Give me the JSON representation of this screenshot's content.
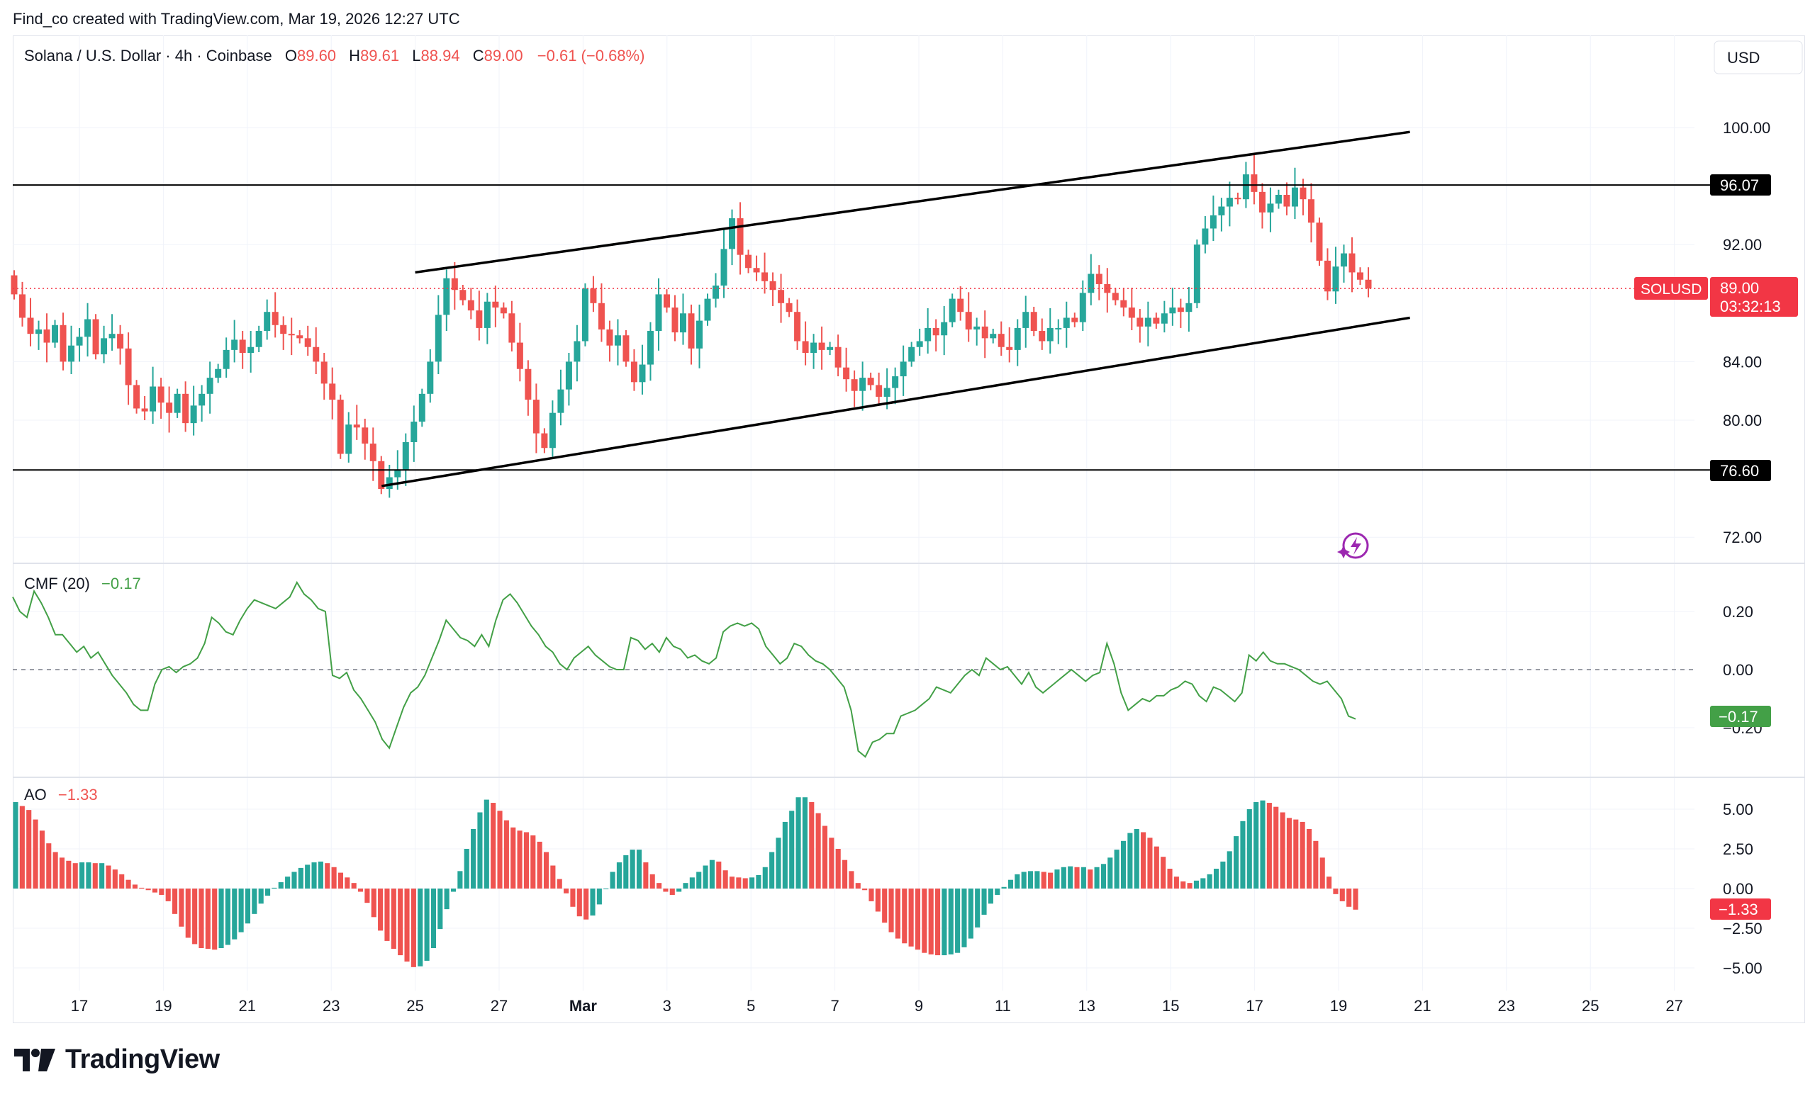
{
  "header": {
    "created_by": "Find_co created with TradingView.com, Mar 19, 2026 12:27 UTC"
  },
  "footer": {
    "brand": "TradingView"
  },
  "colors": {
    "up": "#26a69a",
    "down": "#ef5350",
    "cmf_line": "#43a047",
    "grid": "#f0f3fa",
    "text": "#131722"
  },
  "chart_data": [
    {
      "type": "candlestick",
      "title": "Solana / U.S. Dollar · 4h · Coinbase",
      "ohlc_labels": {
        "o": "O",
        "h": "H",
        "l": "L",
        "c": "C"
      },
      "ohlc": {
        "open": "89.60",
        "high": "89.61",
        "low": "88.94",
        "close": "89.00",
        "change": "−0.61 (−0.68%)"
      },
      "currency": "USD",
      "symbol": "SOLUSD",
      "last_price": "89.00",
      "countdown": "03:32:13",
      "y_ticks": [
        "100.00",
        "92.00",
        "84.00",
        "80.00",
        "72.00"
      ],
      "ylim": [
        69.5,
        103.5
      ],
      "x_ticks": [
        {
          "label": "17",
          "day": 17
        },
        {
          "label": "19",
          "day": 19
        },
        {
          "label": "21",
          "day": 21
        },
        {
          "label": "23",
          "day": 23
        },
        {
          "label": "25",
          "day": 25
        },
        {
          "label": "27",
          "day": 27
        },
        {
          "label": "Mar",
          "day": 29
        },
        {
          "label": "3",
          "day": 31
        },
        {
          "label": "5",
          "day": 33
        },
        {
          "label": "7",
          "day": 35
        },
        {
          "label": "9",
          "day": 37
        },
        {
          "label": "11",
          "day": 39
        },
        {
          "label": "13",
          "day": 41
        },
        {
          "label": "15",
          "day": 43
        },
        {
          "label": "17",
          "day": 45
        },
        {
          "label": "19",
          "day": 47
        },
        {
          "label": "21",
          "day": 49
        },
        {
          "label": "23",
          "day": 51
        },
        {
          "label": "25",
          "day": 53
        },
        {
          "label": "27",
          "day": 55
        }
      ],
      "horizontal_levels": [
        {
          "price": 96.07,
          "label": "96.07"
        },
        {
          "price": 76.6,
          "label": "76.60"
        }
      ],
      "channel": {
        "upper": {
          "from": {
            "day": 25.0,
            "price": 90.1
          },
          "to": {
            "day": 48.7,
            "price": 99.7
          }
        },
        "lower": {
          "from": {
            "day": 24.2,
            "price": 75.5
          },
          "to": {
            "day": 48.7,
            "price": 87.0
          }
        }
      },
      "closes": [
        88.6,
        87.0,
        85.9,
        86.2,
        85.3,
        86.5,
        84.0,
        85.1,
        85.7,
        86.9,
        84.5,
        85.6,
        85.9,
        84.9,
        82.4,
        80.8,
        80.6,
        82.3,
        81.2,
        80.5,
        81.8,
        79.8,
        81.0,
        81.8,
        82.9,
        83.5,
        84.8,
        85.5,
        84.6,
        85.0,
        86.1,
        87.4,
        86.5,
        85.9,
        85.8,
        85.6,
        85.0,
        84.0,
        82.5,
        81.4,
        77.7,
        79.7,
        79.5,
        78.4,
        77.2,
        75.3,
        76.1,
        76.6,
        78.5,
        79.9,
        81.8,
        84.0,
        87.2,
        89.7,
        88.9,
        88.2,
        87.5,
        86.3,
        88.1,
        87.7,
        87.3,
        85.3,
        83.5,
        81.4,
        79.1,
        78.1,
        80.5,
        82.1,
        84.0,
        85.4,
        89.0,
        88.0,
        86.2,
        85.1,
        85.8,
        84.0,
        82.6,
        83.8,
        86.1,
        88.6,
        87.7,
        86.0,
        87.3,
        84.9,
        86.8,
        88.3,
        89.2,
        91.7,
        93.8,
        91.3,
        90.4,
        90.1,
        89.5,
        88.9,
        88.0,
        87.4,
        85.4,
        84.6,
        85.3,
        84.8,
        85.0,
        83.6,
        82.8,
        82.0,
        82.9,
        82.4,
        81.6,
        82.2,
        83.0,
        84.0,
        85.0,
        85.4,
        86.3,
        85.8,
        86.7,
        88.3,
        87.4,
        86.2,
        86.4,
        85.6,
        85.9,
        85.0,
        84.8,
        86.3,
        87.4,
        86.1,
        85.4,
        86.3,
        86.3,
        87.0,
        86.7,
        88.7,
        90.0,
        89.3,
        88.7,
        88.2,
        87.7,
        87.0,
        86.4,
        87.0,
        86.6,
        87.3,
        87.7,
        87.4,
        88.0,
        92.0,
        93.1,
        94.0,
        94.6,
        95.2,
        95.1,
        96.8,
        95.6,
        94.2,
        94.8,
        95.4,
        94.6,
        95.9,
        95.1,
        93.5,
        90.9,
        88.8,
        90.5,
        91.4,
        90.1,
        89.6,
        89.0
      ],
      "opens": [
        89.9,
        88.6,
        87.0,
        85.9,
        86.2,
        85.3,
        86.5,
        84.0,
        85.1,
        85.7,
        86.9,
        84.5,
        85.6,
        85.9,
        84.9,
        82.4,
        80.8,
        80.6,
        82.3,
        81.2,
        80.5,
        81.8,
        79.8,
        81.0,
        81.8,
        82.9,
        83.5,
        84.8,
        85.5,
        84.6,
        85.0,
        86.1,
        87.4,
        86.5,
        85.9,
        85.8,
        85.6,
        85.0,
        84.0,
        82.5,
        81.4,
        77.7,
        79.7,
        79.5,
        78.4,
        77.2,
        75.3,
        76.1,
        76.6,
        78.5,
        79.9,
        81.8,
        84.0,
        87.2,
        89.7,
        88.9,
        88.2,
        87.5,
        86.3,
        88.1,
        87.7,
        87.3,
        85.3,
        83.5,
        81.4,
        79.1,
        78.1,
        80.5,
        82.1,
        84.0,
        85.4,
        89.0,
        88.0,
        86.2,
        85.1,
        85.8,
        84.0,
        82.6,
        83.8,
        86.1,
        88.6,
        87.7,
        86.0,
        87.3,
        84.9,
        86.8,
        88.3,
        89.2,
        91.7,
        93.8,
        91.3,
        90.4,
        90.1,
        89.5,
        88.9,
        88.0,
        87.4,
        85.4,
        84.6,
        85.3,
        84.8,
        85.0,
        83.6,
        82.8,
        82.0,
        82.9,
        82.4,
        81.6,
        82.2,
        83.0,
        84.0,
        85.0,
        85.4,
        86.3,
        85.8,
        86.7,
        88.3,
        87.4,
        86.2,
        86.4,
        85.6,
        85.9,
        85.0,
        84.8,
        86.3,
        87.4,
        86.1,
        85.4,
        86.3,
        86.3,
        87.0,
        86.7,
        88.7,
        90.0,
        89.3,
        88.7,
        88.2,
        87.7,
        87.0,
        86.4,
        87.0,
        86.6,
        87.3,
        87.7,
        87.4,
        88.0,
        92.0,
        93.1,
        94.0,
        94.6,
        95.2,
        95.1,
        96.8,
        95.6,
        94.2,
        94.8,
        95.4,
        94.6,
        95.9,
        95.1,
        93.5,
        90.9,
        88.8,
        90.5,
        91.4,
        90.1,
        89.6
      ],
      "cmf_panel": {
        "title": "CMF (20)",
        "value": "−0.17",
        "y_ticks": [
          "0.20",
          "0.00",
          "−0.20"
        ],
        "ylim": [
          -0.36,
          0.37
        ],
        "values": [
          0.25,
          0.2,
          0.18,
          0.27,
          0.23,
          0.18,
          0.12,
          0.12,
          0.09,
          0.06,
          0.08,
          0.04,
          0.06,
          0.02,
          -0.02,
          -0.05,
          -0.08,
          -0.12,
          -0.14,
          -0.14,
          -0.05,
          0.0,
          0.01,
          -0.01,
          0.01,
          0.02,
          0.04,
          0.09,
          0.18,
          0.16,
          0.13,
          0.12,
          0.17,
          0.21,
          0.24,
          0.23,
          0.22,
          0.21,
          0.23,
          0.25,
          0.3,
          0.26,
          0.24,
          0.21,
          0.2,
          -0.02,
          -0.03,
          -0.01,
          -0.07,
          -0.1,
          -0.14,
          -0.18,
          -0.24,
          -0.27,
          -0.2,
          -0.13,
          -0.08,
          -0.06,
          -0.02,
          0.04,
          0.1,
          0.17,
          0.14,
          0.11,
          0.1,
          0.08,
          0.12,
          0.08,
          0.17,
          0.24,
          0.26,
          0.23,
          0.19,
          0.15,
          0.12,
          0.08,
          0.06,
          0.02,
          0.0,
          0.04,
          0.06,
          0.08,
          0.05,
          0.03,
          0.01,
          0.0,
          0.0,
          0.11,
          0.1,
          0.07,
          0.09,
          0.06,
          0.11,
          0.08,
          0.07,
          0.04,
          0.05,
          0.03,
          0.02,
          0.04,
          0.13,
          0.15,
          0.16,
          0.15,
          0.16,
          0.14,
          0.08,
          0.05,
          0.02,
          0.04,
          0.09,
          0.08,
          0.05,
          0.03,
          0.02,
          0.0,
          -0.03,
          -0.06,
          -0.14,
          -0.28,
          -0.3,
          -0.25,
          -0.24,
          -0.22,
          -0.22,
          -0.16,
          -0.15,
          -0.14,
          -0.12,
          -0.1,
          -0.06,
          -0.07,
          -0.08,
          -0.05,
          -0.02,
          0.0,
          -0.02,
          0.04,
          0.02,
          0.0,
          0.01,
          -0.02,
          -0.05,
          -0.01,
          -0.06,
          -0.08,
          -0.06,
          -0.04,
          -0.02,
          0.0,
          -0.02,
          -0.04,
          -0.02,
          -0.01,
          0.09,
          0.02,
          -0.08,
          -0.14,
          -0.12,
          -0.1,
          -0.11,
          -0.09,
          -0.09,
          -0.07,
          -0.06,
          -0.04,
          -0.05,
          -0.09,
          -0.11,
          -0.06,
          -0.07,
          -0.09,
          -0.11,
          -0.08,
          0.05,
          0.03,
          0.06,
          0.03,
          0.02,
          0.02,
          0.01,
          0.0,
          -0.02,
          -0.04,
          -0.05,
          -0.04,
          -0.07,
          -0.1,
          -0.16,
          -0.17
        ]
      },
      "ao_panel": {
        "title": "AO",
        "value": "−1.33",
        "y_ticks": [
          "5.00",
          "2.50",
          "0.00",
          "−2.50",
          "−5.00"
        ],
        "ylim": [
          -6.2,
          6.8
        ],
        "values": [
          5.45,
          5.2,
          4.95,
          4.35,
          3.65,
          2.85,
          2.3,
          1.95,
          1.75,
          1.6,
          1.65,
          1.65,
          1.6,
          1.6,
          1.45,
          1.2,
          0.9,
          0.55,
          0.25,
          0.05,
          -0.1,
          -0.25,
          -0.4,
          -0.8,
          -1.6,
          -2.4,
          -3.1,
          -3.5,
          -3.75,
          -3.8,
          -3.85,
          -3.75,
          -3.55,
          -3.2,
          -2.75,
          -2.2,
          -1.6,
          -0.95,
          -0.45,
          0.05,
          0.4,
          0.75,
          1.05,
          1.3,
          1.5,
          1.65,
          1.7,
          1.6,
          1.35,
          1.0,
          0.7,
          0.35,
          -0.2,
          -0.9,
          -1.8,
          -2.65,
          -3.3,
          -3.8,
          -4.2,
          -4.6,
          -4.95,
          -4.9,
          -4.55,
          -3.75,
          -2.55,
          -1.3,
          -0.2,
          1.1,
          2.5,
          3.75,
          4.8,
          5.6,
          5.4,
          4.9,
          4.3,
          3.85,
          3.65,
          3.55,
          3.35,
          2.95,
          2.3,
          1.45,
          0.6,
          -0.3,
          -1.15,
          -1.75,
          -1.95,
          -1.7,
          -1.0,
          0.0,
          1.05,
          1.65,
          2.1,
          2.45,
          2.45,
          1.65,
          0.9,
          0.35,
          -0.2,
          -0.4,
          -0.2,
          0.35,
          0.7,
          1.05,
          1.45,
          1.8,
          1.7,
          1.15,
          0.75,
          0.7,
          0.65,
          0.7,
          0.85,
          1.35,
          2.3,
          3.2,
          4.2,
          4.9,
          5.75,
          5.75,
          5.45,
          4.75,
          3.95,
          3.2,
          2.5,
          1.8,
          1.1,
          0.35,
          -0.1,
          -0.8,
          -1.45,
          -2.15,
          -2.75,
          -3.15,
          -3.45,
          -3.65,
          -3.85,
          -4.05,
          -4.15,
          -4.2,
          -4.2,
          -4.15,
          -4.05,
          -3.7,
          -3.15,
          -2.45,
          -1.65,
          -0.95,
          -0.4,
          0.1,
          0.55,
          0.9,
          1.05,
          1.1,
          1.1,
          1.05,
          1.0,
          1.2,
          1.35,
          1.4,
          1.35,
          1.35,
          1.2,
          1.35,
          1.55,
          1.95,
          2.45,
          3.0,
          3.5,
          3.75,
          3.55,
          3.2,
          2.65,
          2.0,
          1.25,
          0.75,
          0.45,
          0.35,
          0.5,
          0.65,
          0.9,
          1.25,
          1.7,
          2.35,
          3.3,
          4.25,
          5.0,
          5.45,
          5.55,
          5.4,
          5.15,
          4.8,
          4.45,
          4.35,
          4.2,
          3.75,
          3.0,
          1.95,
          0.75,
          -0.35,
          -0.8,
          -1.15,
          -1.33
        ]
      }
    }
  ]
}
